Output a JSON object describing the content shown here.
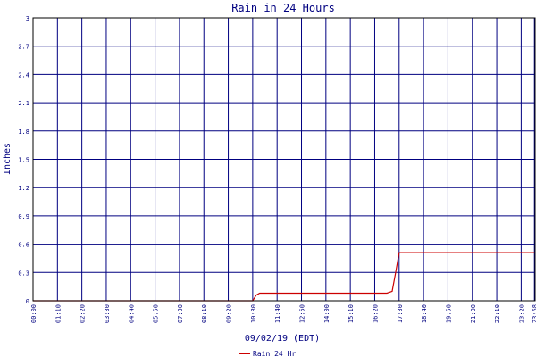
{
  "chart_data": {
    "type": "line",
    "title": "Rain in 24 Hours",
    "xlabel": "09/02/19 (EDT)",
    "ylabel": "Inches",
    "ylim": [
      0,
      3
    ],
    "yticks": [
      "0",
      "0.3",
      "0.6",
      "0.9",
      "1.2",
      "1.5",
      "1.8",
      "2.1",
      "2.4",
      "2.7",
      "3"
    ],
    "xlim_hours": [
      0,
      24
    ],
    "xticks": [
      {
        "label": "00:00",
        "h": 0
      },
      {
        "label": "01:10",
        "h": 1.1667
      },
      {
        "label": "02:20",
        "h": 2.3333
      },
      {
        "label": "03:30",
        "h": 3.5
      },
      {
        "label": "04:40",
        "h": 4.6667
      },
      {
        "label": "05:50",
        "h": 5.8333
      },
      {
        "label": "07:00",
        "h": 7
      },
      {
        "label": "08:10",
        "h": 8.1667
      },
      {
        "label": "09:20",
        "h": 9.3333
      },
      {
        "label": "10:30",
        "h": 10.5
      },
      {
        "label": "11:40",
        "h": 11.6667
      },
      {
        "label": "12:50",
        "h": 12.8333
      },
      {
        "label": "14:00",
        "h": 14
      },
      {
        "label": "15:10",
        "h": 15.1667
      },
      {
        "label": "16:20",
        "h": 16.3333
      },
      {
        "label": "17:30",
        "h": 17.5
      },
      {
        "label": "18:40",
        "h": 18.6667
      },
      {
        "label": "19:50",
        "h": 19.8333
      },
      {
        "label": "21:00",
        "h": 21
      },
      {
        "label": "22:10",
        "h": 22.1667
      },
      {
        "label": "23:20",
        "h": 23.3333
      },
      {
        "label": "23:58",
        "h": 23.9667
      }
    ],
    "series": [
      {
        "name": "Rain 24 Hr",
        "color": "#cc0000",
        "points": [
          {
            "time": "00:00",
            "value": 0
          },
          {
            "time": "10:30",
            "value": 0
          },
          {
            "time": "10:40",
            "value": 0.06
          },
          {
            "time": "10:50",
            "value": 0.08
          },
          {
            "time": "16:55",
            "value": 0.08
          },
          {
            "time": "17:10",
            "value": 0.1
          },
          {
            "time": "17:20",
            "value": 0.3
          },
          {
            "time": "17:30",
            "value": 0.51
          },
          {
            "time": "23:58",
            "value": 0.51
          }
        ]
      }
    ],
    "grid": true,
    "legend": "bottom"
  },
  "colors": {
    "grid": "#000080",
    "axis": "#000000",
    "title": "#000080",
    "series": "#cc0000"
  }
}
